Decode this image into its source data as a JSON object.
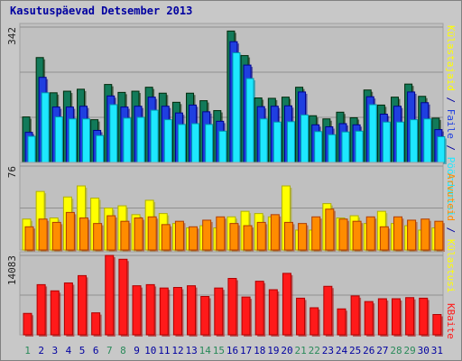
{
  "title": "Kasutuspäevad Detsember 2013",
  "colors": {
    "background": "#c8c8c8",
    "panel": "#c0c0c0",
    "grid": "#909090",
    "title": "#0000a0",
    "visits": "#127a5a",
    "pages": "#1f3fe0",
    "hits": "#1ee8ff",
    "files": "#ffff00",
    "bytes": "#ff8c00",
    "kbytes": "#ff1a1a",
    "weekend_label": "#2a8a5a",
    "weekday_label": "#0000a0"
  },
  "side_labels": {
    "top": [
      {
        "text": "Külastajaid",
        "color": "#ffff00"
      },
      {
        "text": " / ",
        "color": "#0000a0"
      },
      {
        "text": "Faile",
        "color": "#1f3fe0"
      },
      {
        "text": " / ",
        "color": "#0000a0"
      },
      {
        "text": "Pöördumisi",
        "color": "#1ee8ff"
      }
    ],
    "mid": [
      {
        "text": "Arvuteid",
        "color": "#ff8c00"
      },
      {
        "text": " / ",
        "color": "#0000a0"
      },
      {
        "text": "Külastusi",
        "color": "#ffff00"
      }
    ],
    "bottom": [
      {
        "text": "KBaite",
        "color": "#ff1a1a"
      }
    ]
  },
  "chart_data": {
    "type": "bar",
    "title": "Kasutuspäevad Detsember 2013",
    "categories": [
      "1",
      "2",
      "3",
      "4",
      "5",
      "6",
      "7",
      "8",
      "9",
      "10",
      "11",
      "12",
      "13",
      "14",
      "15",
      "16",
      "17",
      "18",
      "19",
      "20",
      "21",
      "22",
      "23",
      "24",
      "25",
      "26",
      "27",
      "28",
      "29",
      "30",
      "31"
    ],
    "weekend_days": [
      "1",
      "7",
      "8",
      "14",
      "15",
      "21",
      "22",
      "28",
      "29"
    ],
    "panels": [
      {
        "name": "top",
        "ymax_label": "342",
        "ylim": [
          0,
          342
        ],
        "series": [
          {
            "color": "visits",
            "values": [
              115,
              265,
              176,
              180,
              185,
              108,
              197,
              177,
              180,
              190,
              175,
              152,
              175,
              156,
              131,
              332,
              270,
              163,
              162,
              165,
              190,
              118,
              110,
              127,
              113,
              183,
              145,
              165,
              198,
              167,
              112
            ]
          },
          {
            "color": "pages",
            "values": [
              76,
              215,
              140,
              140,
              142,
              81,
              168,
              140,
              142,
              165,
              142,
              125,
              145,
              128,
              104,
              305,
              246,
              141,
              142,
              143,
              178,
              95,
              90,
              98,
              95,
              166,
              122,
              142,
              178,
              151,
              83
            ]
          },
          {
            "color": "hits",
            "values": [
              66,
              176,
              115,
              110,
              110,
              68,
              146,
              112,
              114,
              132,
              108,
              96,
              98,
              96,
              79,
              277,
              212,
              110,
              102,
              103,
              120,
              78,
              70,
              77,
              79,
              146,
              102,
              102,
              108,
              110,
              65
            ]
          }
        ]
      },
      {
        "name": "mid",
        "ymax_label": "76",
        "ylim": [
          0,
          76
        ],
        "series": [
          {
            "color": "files",
            "values": [
              28,
              53,
              29,
              48,
              58,
              47,
              38,
              40,
              32,
              45,
              33,
              24,
              20,
              22,
              20,
              30,
              35,
              33,
              30,
              58,
              18,
              18,
              42,
              29,
              31,
              24,
              35,
              24,
              22,
              18,
              20
            ]
          },
          {
            "color": "bytes",
            "values": [
              21,
              28,
              25,
              34,
              29,
              24,
              31,
              26,
              29,
              30,
              23,
              26,
              21,
              27,
              30,
              24,
              22,
              25,
              32,
              25,
              24,
              30,
              37,
              28,
              26,
              30,
              21,
              30,
              27,
              28,
              26
            ]
          }
        ]
      },
      {
        "name": "bottom",
        "ymax_label": "14083",
        "ylim": [
          0,
          14083
        ],
        "series": [
          {
            "color": "kbytes",
            "values": [
              3800,
              8900,
              7800,
              9200,
              10500,
              3900,
              14083,
              13400,
              8700,
              8900,
              8300,
              8400,
              8700,
              6800,
              8300,
              10000,
              6700,
              9500,
              8000,
              10900,
              6500,
              4800,
              8600,
              4600,
              6900,
              5900,
              6400,
              6400,
              6600,
              6500,
              3600
            ]
          }
        ]
      }
    ]
  }
}
